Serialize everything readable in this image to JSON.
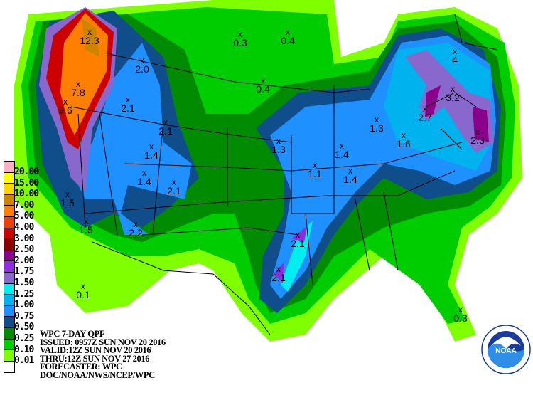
{
  "product": {
    "title": "WPC 7-DAY QPF",
    "issued": "ISSUED: 0957Z SUN NOV 20 2016",
    "valid": "VALID:12Z SUN NOV 20 2016",
    "thru": "THRU:12Z SUN NOV 27 2016",
    "forecaster": "FORECASTER: WPC",
    "source": "DOC/NOAA/NWS/NCEP/WPC"
  },
  "legend": [
    {
      "label": "20.00",
      "color": "#ffb0c8"
    },
    {
      "label": "15.00",
      "color": "#ffff00"
    },
    {
      "label": "10.00",
      "color": "#ffd700"
    },
    {
      "label": "7.00",
      "color": "#cd8500"
    },
    {
      "label": "5.00",
      "color": "#ff8000"
    },
    {
      "label": "4.00",
      "color": "#ee4000"
    },
    {
      "label": "3.00",
      "color": "#cd0000"
    },
    {
      "label": "2.50",
      "color": "#8b0000"
    },
    {
      "label": "2.00",
      "color": "#8b008b"
    },
    {
      "label": "1.75",
      "color": "#912ce0"
    },
    {
      "label": "1.50",
      "color": "#8968cd"
    },
    {
      "label": "1.25",
      "color": "#00eeee"
    },
    {
      "label": "1.00",
      "color": "#00b2ee"
    },
    {
      "label": "0.75",
      "color": "#1e90ff"
    },
    {
      "label": "0.50",
      "color": "#104e8b"
    },
    {
      "label": "0.25",
      "color": "#008b00"
    },
    {
      "label": "0.10",
      "color": "#00cd00"
    },
    {
      "label": "0.01",
      "color": "#7fff00"
    },
    {
      "label": "",
      "color": "#ffffff"
    }
  ],
  "points": [
    "12.3",
    "7.8",
    "9.6",
    "2.0",
    "2.1",
    "2.1",
    "1.4",
    "1.4",
    "2.1",
    "1.5",
    "1.5",
    "2.2",
    "0.1",
    "0.3",
    "0.4",
    "0.4",
    "1.3",
    "1.1",
    "1.4",
    "1.4",
    "1.3",
    "1.6",
    "2.7",
    "3.2",
    "4",
    "2.3",
    "2.1",
    "2.1",
    "0.3"
  ],
  "logo": {
    "text": "NOAA",
    "ring_text": "NATIONAL OCEANIC AND ATMOSPHERIC ADMINISTRATION · U.S. DEPARTMENT OF COMMERCE"
  }
}
